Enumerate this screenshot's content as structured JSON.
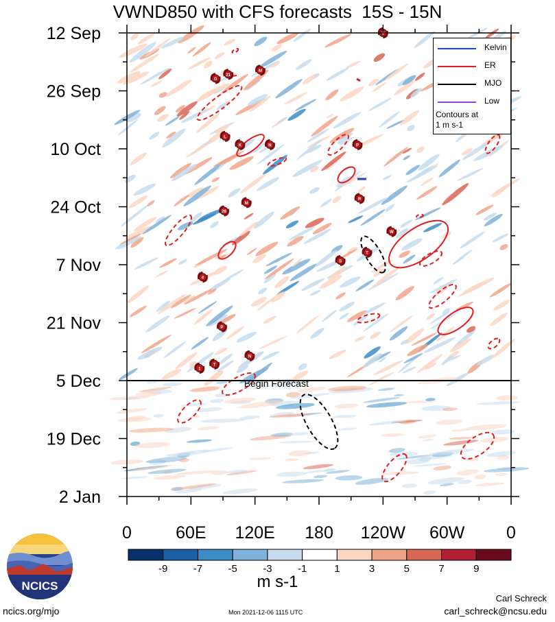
{
  "title": "VWND850 with CFS forecasts  15S - 15N",
  "chart_data": {
    "type": "heatmap",
    "title": "VWND850 with CFS forecasts  15S - 15N",
    "x_tick_labels": [
      "0",
      "60E",
      "120E",
      "180",
      "120W",
      "60W",
      "0"
    ],
    "x_range_deg_east": [
      0,
      360
    ],
    "y_tick_labels": [
      "12 Sep",
      "26 Sep",
      "10 Oct",
      "24 Oct",
      "7 Nov",
      "21 Nov",
      "5 Dec",
      "19 Dec",
      "2 Jan"
    ],
    "y_range": [
      "12 Sep",
      "2 Jan"
    ],
    "forecast_start": "5 Dec",
    "forecast_label": "Begin Forecast",
    "colorbar": {
      "tick_labels": [
        "-9",
        "-7",
        "-5",
        "-3",
        "-1",
        "1",
        "3",
        "5",
        "7",
        "9"
      ],
      "colors": [
        "#08306b",
        "#1c5fa2",
        "#3b8cc3",
        "#7fb2d8",
        "#c6dcee",
        "#ffffff",
        "#fbd6c3",
        "#f0a58a",
        "#d96756",
        "#b21f35",
        "#6b0a1c"
      ],
      "units": "m s-1"
    },
    "legend": {
      "entries": [
        {
          "name": "Kelvin",
          "color": "#1f3fd8"
        },
        {
          "name": "ER",
          "color": "#e41a1c"
        },
        {
          "name": "MJO",
          "color": "#000000"
        },
        {
          "name": "Low",
          "color": "#9b3fd0"
        }
      ],
      "note": "Contours at\n1 m s-1",
      "placement": "top-right"
    },
    "storms": [
      {
        "label": "V",
        "lon": 240,
        "date": "12 Sep"
      },
      {
        "label": "G",
        "lon": 83,
        "date": "23 Sep"
      },
      {
        "label": "21",
        "lon": 95,
        "date": "22 Sep"
      },
      {
        "label": "M",
        "lon": 125,
        "date": "21 Sep"
      },
      {
        "label": "L",
        "lon": 92,
        "date": "7 Oct"
      },
      {
        "label": "K",
        "lon": 106,
        "date": "9 Oct"
      },
      {
        "label": "N",
        "lon": 134,
        "date": "9 Oct"
      },
      {
        "label": "P",
        "lon": 216,
        "date": "9 Oct"
      },
      {
        "label": "R",
        "lon": 218,
        "date": "22 Oct"
      },
      {
        "label": "26",
        "lon": 91,
        "date": "25 Oct"
      },
      {
        "label": "M",
        "lon": 112,
        "date": "23 Oct"
      },
      {
        "label": "W",
        "lon": 248,
        "date": "30 Oct"
      },
      {
        "label": "T",
        "lon": 225,
        "date": "4 Nov"
      },
      {
        "label": "S",
        "lon": 200,
        "date": "6 Nov"
      },
      {
        "label": "4",
        "lon": 71,
        "date": "10 Nov"
      },
      {
        "label": "P",
        "lon": 89,
        "date": "22 Nov"
      },
      {
        "label": "N",
        "lon": 115,
        "date": "29 Nov"
      },
      {
        "label": "T",
        "lon": 82,
        "date": "1 Dec"
      },
      {
        "label": "1",
        "lon": 68,
        "date": "2 Dec"
      }
    ]
  },
  "footer": {
    "site": "ncics.org/mjo",
    "timestamp": "Mon 2021-12-06 1115 UTC",
    "author": "Carl Schreck",
    "email": "carl_schreck@ncsu.edu",
    "logo_text": "NCICS"
  }
}
